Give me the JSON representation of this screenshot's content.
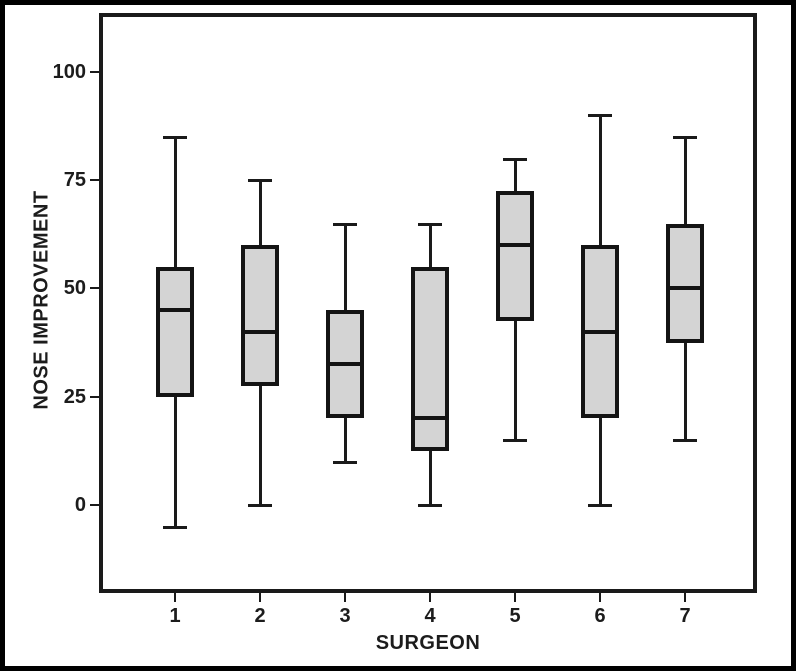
{
  "chart_data": {
    "type": "boxplot",
    "title": "",
    "xlabel": "SURGEON",
    "ylabel": "NOSE IMPROVEMENT",
    "categories": [
      "1",
      "2",
      "3",
      "4",
      "5",
      "6",
      "7"
    ],
    "y_ticks": [
      0,
      25,
      50,
      75,
      100
    ],
    "ylim": [
      -19.4,
      112.7
    ],
    "grid": false,
    "legend": "none",
    "outliers_shown": false,
    "series": [
      {
        "category": "1",
        "whisker_low": -5,
        "q1": 25,
        "median": 45,
        "q3": 55,
        "whisker_high": 85
      },
      {
        "category": "2",
        "whisker_low": 0,
        "q1": 27.5,
        "median": 40,
        "q3": 60,
        "whisker_high": 75
      },
      {
        "category": "3",
        "whisker_low": 10,
        "q1": 20,
        "median": 32.5,
        "q3": 45,
        "whisker_high": 65
      },
      {
        "category": "4",
        "whisker_low": 0,
        "q1": 12.5,
        "median": 20,
        "q3": 55,
        "whisker_high": 65
      },
      {
        "category": "5",
        "whisker_low": 15,
        "q1": 42.5,
        "median": 60,
        "q3": 72.5,
        "whisker_high": 80
      },
      {
        "category": "6",
        "whisker_low": 0,
        "q1": 20,
        "median": 40,
        "q3": 60,
        "whisker_high": 90
      },
      {
        "category": "7",
        "whisker_low": 15,
        "q1": 37.5,
        "median": 50,
        "q3": 65,
        "whisker_high": 85
      }
    ],
    "colors": {
      "box_fill": "#d4d4d4",
      "box_stroke": "#141414",
      "axis_frame": "#1a1a1a",
      "text": "#1c1c1c",
      "background": "#ffffff",
      "outer_border": "#000000"
    }
  }
}
